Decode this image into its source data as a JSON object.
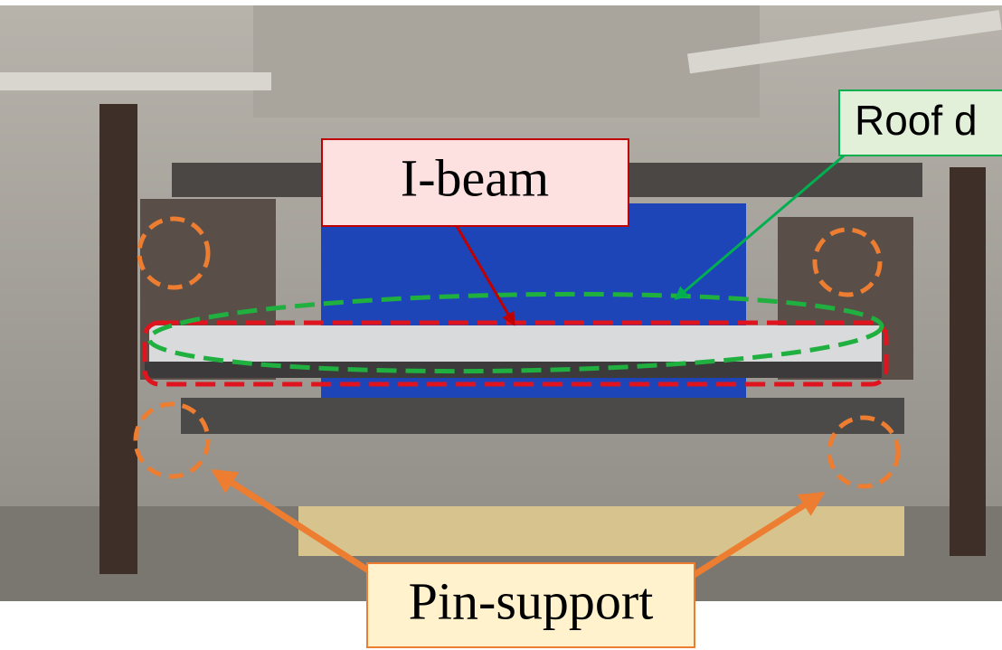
{
  "annotations": {
    "i_beam": "I-beam",
    "roof_deck": "Roof d",
    "pin_support": "Pin-support"
  }
}
